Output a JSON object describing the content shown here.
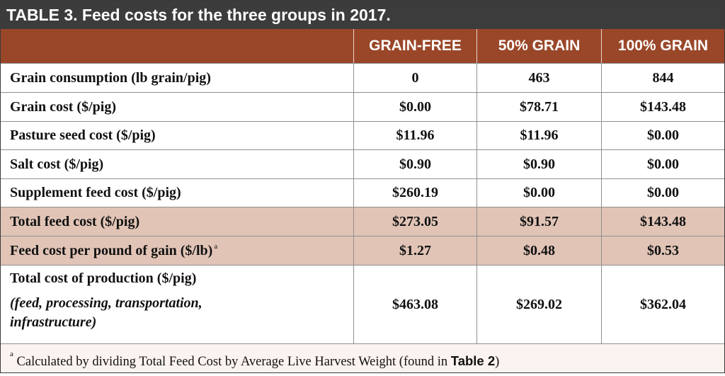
{
  "title": "TABLE 3. Feed costs for the three groups in 2017.",
  "columns": [
    "GRAIN-FREE",
    "50% GRAIN",
    "100% GRAIN"
  ],
  "rows": [
    {
      "label": "Grain consumption (lb grain/pig)",
      "values": [
        "0",
        "463",
        "844"
      ]
    },
    {
      "label": "Grain cost ($/pig)",
      "values": [
        "$0.00",
        "$78.71",
        "$143.48"
      ]
    },
    {
      "label": "Pasture seed cost ($/pig)",
      "values": [
        "$11.96",
        "$11.96",
        "$0.00"
      ]
    },
    {
      "label": "Salt cost ($/pig)",
      "values": [
        "$0.90",
        "$0.90",
        "$0.00"
      ]
    },
    {
      "label": "Supplement feed cost ($/pig)",
      "values": [
        "$260.19",
        "$0.00",
        "$0.00"
      ]
    },
    {
      "label": "Total feed cost ($/pig)",
      "values": [
        "$273.05",
        "$91.57",
        "$143.48"
      ]
    },
    {
      "label": "Feed cost per pound of gain ($/lb)",
      "sup": "a",
      "values": [
        "$1.27",
        "$0.48",
        "$0.53"
      ]
    },
    {
      "label": "Total cost of production ($/pig)",
      "sublabel": "(feed, processing, transportation, infrastructure)",
      "values": [
        "$463.08",
        "$269.02",
        "$362.04"
      ]
    }
  ],
  "footnote": {
    "marker": "a",
    "text": "Calculated by dividing Total Feed Cost by Average Live Harvest Weight (found in ",
    "ref": "Table 2",
    "close": ")"
  },
  "colors": {
    "title_bg": "#3c3c3c",
    "header_bg": "#9a4729",
    "shaded_row": "#e1c4b6",
    "footnote_bg": "#fbf3ef"
  }
}
